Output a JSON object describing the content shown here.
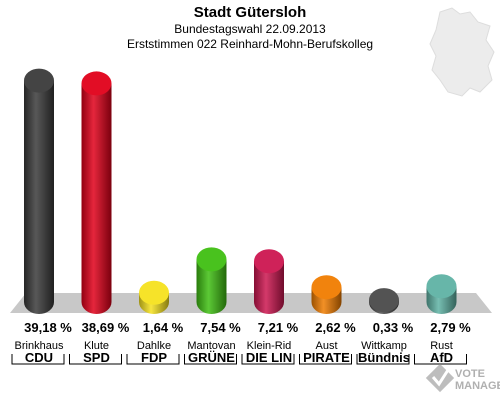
{
  "chart_data": {
    "type": "bar",
    "title": "Stadt Gütersloh",
    "subtitle_1": "Bundestagswahl 22.09.2013",
    "subtitle_2": "Erststimmen 022 Reinhard-Mohn-Berufskolleg",
    "ylim": [
      0,
      40
    ],
    "bars": [
      {
        "candidate": "Brinkhaus",
        "party": "CDU",
        "value": 39.18,
        "label": "39,18 %",
        "color": "#3a3a3a"
      },
      {
        "candidate": "Klute",
        "party": "SPD",
        "value": 38.69,
        "label": "38,69 %",
        "color": "#e0001a"
      },
      {
        "candidate": "Dahlke",
        "party": "FDP",
        "value": 1.64,
        "label": "1,64 %",
        "color": "#f5e11e"
      },
      {
        "candidate": "Mantovan",
        "party": "GRÜNE",
        "value": 7.54,
        "label": "7,54 %",
        "color": "#3fbf12"
      },
      {
        "candidate": "Klein-Rid",
        "party": "DIE LIN",
        "value": 7.21,
        "label": "7,21 %",
        "color": "#cc1650"
      },
      {
        "candidate": "Aust",
        "party": "PIRATE",
        "value": 2.62,
        "label": "2,62 %",
        "color": "#f07c00"
      },
      {
        "candidate": "Wittkamp",
        "party": "Bündnis",
        "value": 0.33,
        "label": "0,33 %",
        "color": "#4a4a4a"
      },
      {
        "candidate": "Rust",
        "party": "AfD",
        "value": 2.79,
        "label": "2,79 %",
        "color": "#5fb2a4"
      }
    ]
  },
  "logo": {
    "line1": "VOTE",
    "line2": "MANAGER"
  }
}
